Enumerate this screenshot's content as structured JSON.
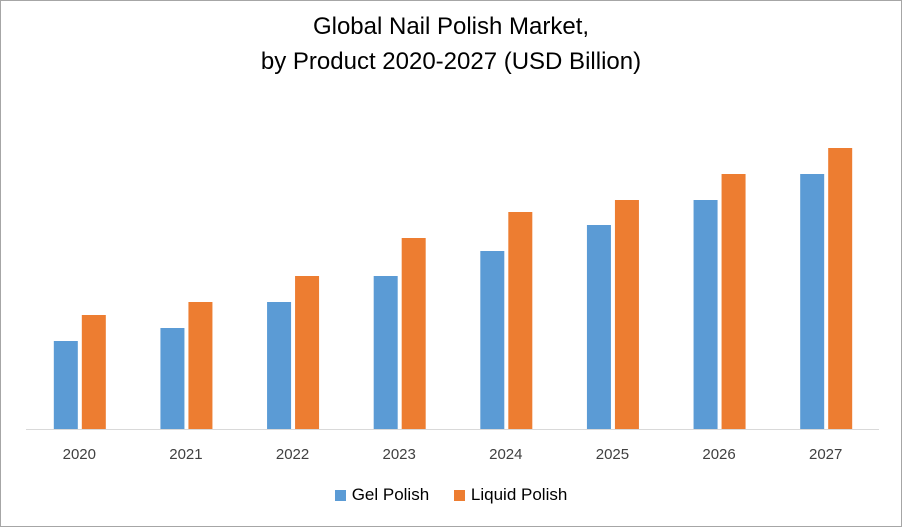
{
  "chart_data": {
    "type": "bar",
    "title": "Global Nail Polish Market,",
    "subtitle": "by Product 2020-2027 (USD Billion)",
    "categories": [
      "2020",
      "2021",
      "2022",
      "2023",
      "2024",
      "2025",
      "2026",
      "2027"
    ],
    "series": [
      {
        "name": "Gel Polish",
        "color": "#5b9bd5",
        "values": [
          8.8,
          10.1,
          12.7,
          15.3,
          17.8,
          20.4,
          22.9,
          25.5
        ]
      },
      {
        "name": "Liquid Polish",
        "color": "#ed7d31",
        "values": [
          11.4,
          12.7,
          15.3,
          19.1,
          21.7,
          22.9,
          25.5,
          28.1
        ]
      }
    ],
    "ylim": [
      0,
      30
    ],
    "grid": false,
    "y_axis_visible": false,
    "legend_position": "bottom",
    "xlabel": "",
    "ylabel": ""
  }
}
